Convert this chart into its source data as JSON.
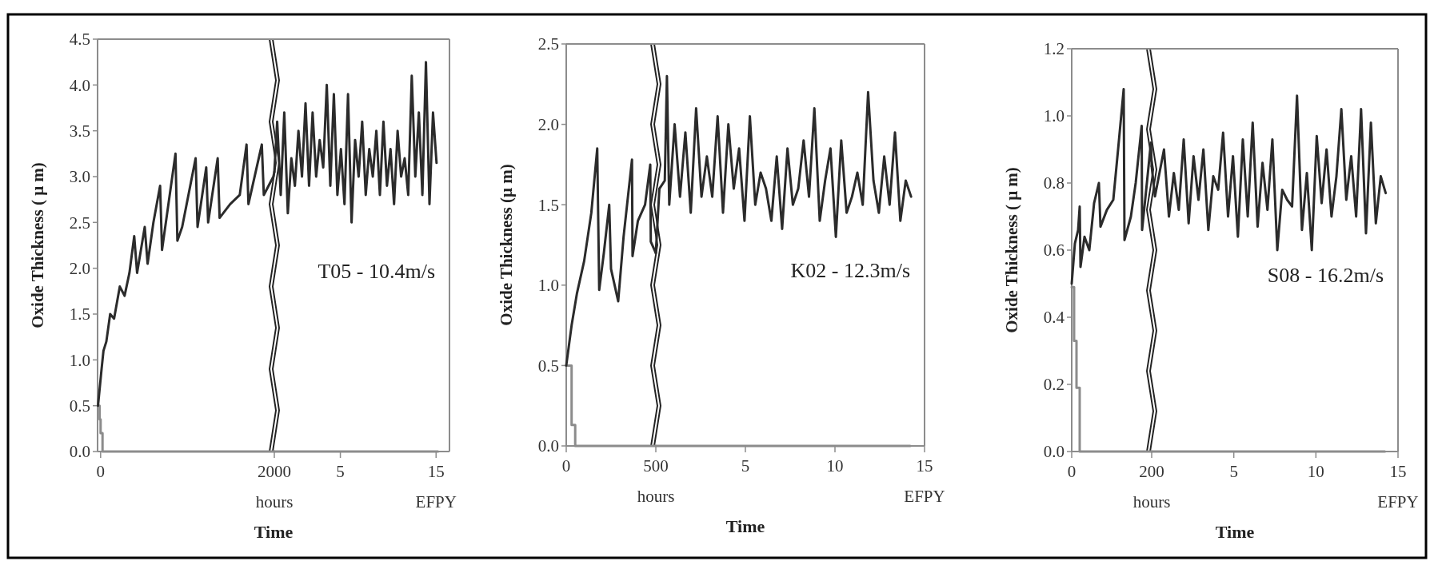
{
  "chart_data": [
    {
      "type": "line",
      "ylabel": "Oxide Thickness   ( μ m)",
      "xlabel": "hours",
      "annotations": [
        "Time"
      ],
      "xlim": [
        -35,
        2000
      ],
      "ylim": [
        0,
        4.5
      ],
      "xticks": [
        0,
        2000
      ],
      "yticks": [
        {
          "value": 0,
          "label": "0.0"
        },
        0.5,
        {
          "value": 1,
          "label": "1.0"
        },
        1.5,
        {
          "value": 2,
          "label": "2.0"
        },
        2.5,
        {
          "value": 3,
          "label": "3.0"
        },
        3.5,
        {
          "value": 4,
          "label": "4.0"
        },
        4.5
      ],
      "series": [
        {
          "color": "#8c8c8c",
          "type": "step",
          "x": [
            -30,
            -11,
            0,
            22,
            2000
          ],
          "values": [
            0.5,
            0.35,
            0.2,
            0,
            0
          ]
        },
        {
          "color": "#2b2b2b",
          "x": [
            -30,
            11,
            33,
            66,
            110,
            155,
            221,
            276,
            332,
            387,
            420,
            508,
            541,
            608,
            685,
            707,
            862,
            884,
            939,
            1094,
            1116,
            1216,
            1238,
            1348,
            1370,
            1492,
            1602,
            1680,
            1702,
            1856,
            1879,
            1989,
            2000
          ],
          "values": [
            0.5,
            0.9,
            1.1,
            1.2,
            1.5,
            1.45,
            1.8,
            1.7,
            1.95,
            2.35,
            1.95,
            2.45,
            2.05,
            2.5,
            2.9,
            2.2,
            3.25,
            2.3,
            2.45,
            3.2,
            2.45,
            3.1,
            2.5,
            3.2,
            2.55,
            2.7,
            2.8,
            3.35,
            2.7,
            3.35,
            2.8,
            3.0,
            3.05
          ]
        }
      ]
    },
    {
      "type": "line",
      "xlabel": "EFPY",
      "annotations": [
        "T05 - 10.4m/s"
      ],
      "xlim": [
        -1.9,
        16.4
      ],
      "ylim": [
        0,
        4.5
      ],
      "tick_labels": "x",
      "xticks": [
        5,
        15
      ],
      "series": [
        {
          "color": "#8c8c8c",
          "type": "step",
          "x": [
            -1.9,
            15.2
          ],
          "values": [
            0,
            0
          ]
        },
        {
          "color": "#2b2b2b",
          "x": [
            -1.9,
            -1.6,
            -1.23,
            -0.86,
            -0.49,
            -0.12,
            0.25,
            0.62,
            0.99,
            1.36,
            1.73,
            2.1,
            2.47,
            2.84,
            3.21,
            3.58,
            3.95,
            4.32,
            4.69,
            5.06,
            5.43,
            5.8,
            6.17,
            6.54,
            6.91,
            7.28,
            7.65,
            8.02,
            8.39,
            8.76,
            9.13,
            9.5,
            9.87,
            10.24,
            10.61,
            10.98,
            11.35,
            11.72,
            12.09,
            12.46,
            12.83,
            13.2,
            13.57,
            13.94,
            14.31,
            14.68,
            15.05
          ],
          "values": [
            3.05,
            3.6,
            2.8,
            3.7,
            2.6,
            3.2,
            2.9,
            3.5,
            3.0,
            3.8,
            2.9,
            3.7,
            3.0,
            3.4,
            3.1,
            4.0,
            2.9,
            3.9,
            2.8,
            3.3,
            2.7,
            3.9,
            2.5,
            3.4,
            3.0,
            3.6,
            2.8,
            3.3,
            3.0,
            3.5,
            2.8,
            3.6,
            2.9,
            3.3,
            2.7,
            3.5,
            3.0,
            3.2,
            2.8,
            4.1,
            3.0,
            3.7,
            2.8,
            4.25,
            2.7,
            3.7,
            3.15
          ]
        }
      ]
    },
    {
      "type": "line",
      "ylabel": "Oxide Thickness  (μ m)",
      "xlabel": "hours",
      "annotations": [
        "Time"
      ],
      "xlim": [
        0,
        500
      ],
      "ylim": [
        0,
        2.5
      ],
      "xticks": [
        0,
        500
      ],
      "yticks": [
        {
          "value": 0,
          "label": "0.0"
        },
        0.5,
        {
          "value": 1,
          "label": "1.0"
        },
        1.5,
        {
          "value": 2,
          "label": "2.0"
        },
        2.5
      ],
      "series": [
        {
          "color": "#8c8c8c",
          "type": "step",
          "x": [
            0,
            30,
            50,
            500
          ],
          "values": [
            0.5,
            0.13,
            0,
            0
          ]
        },
        {
          "color": "#2b2b2b",
          "x": [
            0,
            30,
            60,
            100,
            140,
            173,
            184,
            210,
            240,
            250,
            290,
            320,
            367,
            370,
            400,
            440,
            469,
            472,
            500
          ],
          "values": [
            0.5,
            0.75,
            0.95,
            1.15,
            1.45,
            1.85,
            0.97,
            1.2,
            1.5,
            1.1,
            0.9,
            1.3,
            1.78,
            1.18,
            1.4,
            1.5,
            1.75,
            1.27,
            1.2
          ]
        }
      ]
    },
    {
      "type": "line",
      "xlabel": "EFPY",
      "annotations": [
        "K02 - 12.3m/s"
      ],
      "xlim": [
        0,
        15
      ],
      "ylim": [
        0,
        2.5
      ],
      "tick_labels": "x",
      "xticks": [
        5,
        10,
        15
      ],
      "series": [
        {
          "color": "#8c8c8c",
          "type": "step",
          "x": [
            0,
            14.2
          ],
          "values": [
            0,
            0
          ]
        },
        {
          "color": "#2b2b2b",
          "x": [
            0,
            0.2,
            0.5,
            0.62,
            0.75,
            1.05,
            1.35,
            1.65,
            1.95,
            2.25,
            2.55,
            2.85,
            3.15,
            3.45,
            3.75,
            4.05,
            4.35,
            4.65,
            4.95,
            5.25,
            5.55,
            5.85,
            6.15,
            6.45,
            6.75,
            7.05,
            7.35,
            7.65,
            7.95,
            8.25,
            8.55,
            8.85,
            9.15,
            9.45,
            9.75,
            10.05,
            10.35,
            10.65,
            10.95,
            11.25,
            11.55,
            11.85,
            12.15,
            12.45,
            12.75,
            13.05,
            13.35,
            13.65,
            13.95,
            14.25
          ],
          "values": [
            1.2,
            1.6,
            1.65,
            2.3,
            1.5,
            2.0,
            1.55,
            1.95,
            1.45,
            2.1,
            1.55,
            1.8,
            1.55,
            2.05,
            1.45,
            2.0,
            1.6,
            1.85,
            1.4,
            2.05,
            1.5,
            1.7,
            1.6,
            1.4,
            1.8,
            1.35,
            1.85,
            1.5,
            1.6,
            1.9,
            1.55,
            2.1,
            1.4,
            1.65,
            1.85,
            1.3,
            1.9,
            1.45,
            1.55,
            1.7,
            1.5,
            2.2,
            1.65,
            1.45,
            1.8,
            1.5,
            1.95,
            1.4,
            1.65,
            1.55
          ]
        }
      ]
    },
    {
      "type": "line",
      "ylabel": "Oxide Thickness ( μ m)",
      "xlabel": "hours",
      "annotations": [
        "Time"
      ],
      "xlim": [
        0,
        200
      ],
      "ylim": [
        0,
        1.2
      ],
      "xticks": [
        0,
        200
      ],
      "yticks": [
        {
          "value": 0,
          "label": "0.0"
        },
        0.2,
        0.4,
        0.6,
        0.8,
        {
          "value": 1,
          "label": "1.0"
        },
        1.2
      ],
      "series": [
        {
          "color": "#8c8c8c",
          "type": "step",
          "x": [
            0,
            6,
            12,
            20,
            200
          ],
          "values": [
            0.49,
            0.33,
            0.19,
            0,
            0
          ]
        },
        {
          "color": "#2b2b2b",
          "x": [
            0,
            8,
            16,
            20,
            22,
            32,
            44,
            56,
            68,
            72,
            88,
            104,
            116,
            130,
            132,
            148,
            160,
            175,
            176,
            188,
            198,
            200
          ],
          "values": [
            0.5,
            0.62,
            0.66,
            0.73,
            0.55,
            0.64,
            0.6,
            0.74,
            0.8,
            0.67,
            0.72,
            0.75,
            0.9,
            1.08,
            0.63,
            0.7,
            0.8,
            0.97,
            0.66,
            0.8,
            0.92,
            0.85
          ]
        }
      ]
    },
    {
      "type": "line",
      "xlabel": "EFPY",
      "annotations": [
        "S08 - 16.2m/s"
      ],
      "xlim": [
        0,
        15
      ],
      "ylim": [
        0,
        1.2
      ],
      "tick_labels": "x",
      "xticks": [
        5,
        10,
        15
      ],
      "series": [
        {
          "color": "#8c8c8c",
          "type": "step",
          "x": [
            0,
            14.2
          ],
          "values": [
            0,
            0
          ]
        },
        {
          "color": "#2b2b2b",
          "x": [
            0,
            0.2,
            0.75,
            1.05,
            1.35,
            1.65,
            1.95,
            2.25,
            2.55,
            2.85,
            3.15,
            3.45,
            3.75,
            4.05,
            4.35,
            4.65,
            4.95,
            5.25,
            5.55,
            5.85,
            6.15,
            6.45,
            6.75,
            7.05,
            7.35,
            7.65,
            7.95,
            8.25,
            8.55,
            8.85,
            9.15,
            9.45,
            9.75,
            10.05,
            10.35,
            10.65,
            10.95,
            11.25,
            11.55,
            11.85,
            12.15,
            12.45,
            12.75,
            13.05,
            13.35,
            13.65,
            13.95,
            14.25
          ],
          "values": [
            0.85,
            0.76,
            0.9,
            0.7,
            0.83,
            0.72,
            0.93,
            0.68,
            0.88,
            0.75,
            0.9,
            0.66,
            0.82,
            0.78,
            0.95,
            0.7,
            0.88,
            0.64,
            0.93,
            0.7,
            0.98,
            0.67,
            0.86,
            0.72,
            0.93,
            0.6,
            0.78,
            0.75,
            0.73,
            1.06,
            0.66,
            0.83,
            0.6,
            0.94,
            0.74,
            0.9,
            0.7,
            0.82,
            1.02,
            0.75,
            0.88,
            0.7,
            1.02,
            0.65,
            0.98,
            0.68,
            0.82,
            0.77
          ]
        }
      ]
    }
  ]
}
